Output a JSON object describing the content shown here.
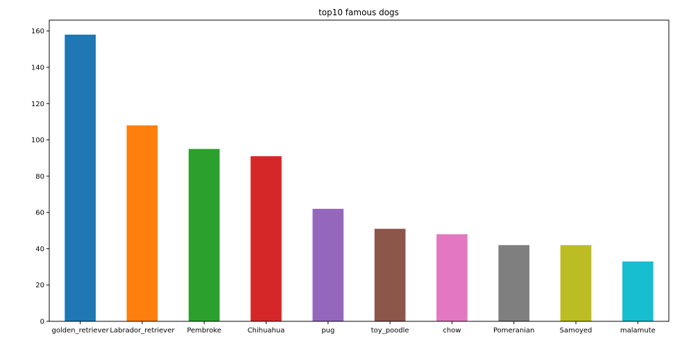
{
  "chart_data": {
    "type": "bar",
    "title": "top10 famous dogs",
    "xlabel": "",
    "ylabel": "",
    "categories": [
      "golden_retriever",
      "Labrador_retriever",
      "Pembroke",
      "Chihuahua",
      "pug",
      "toy_poodle",
      "chow",
      "Pomeranian",
      "Samoyed",
      "malamute"
    ],
    "values": [
      158,
      108,
      95,
      91,
      62,
      51,
      48,
      42,
      42,
      33
    ],
    "colors": [
      "#1f77b4",
      "#ff7f0e",
      "#2ca02c",
      "#d62728",
      "#9467bd",
      "#8c564b",
      "#e377c2",
      "#7f7f7f",
      "#bcbd22",
      "#17becf"
    ],
    "ylim": [
      0,
      166
    ],
    "yticks": [
      0,
      20,
      40,
      60,
      80,
      100,
      120,
      140,
      160
    ],
    "grid": false,
    "legend": false
  }
}
